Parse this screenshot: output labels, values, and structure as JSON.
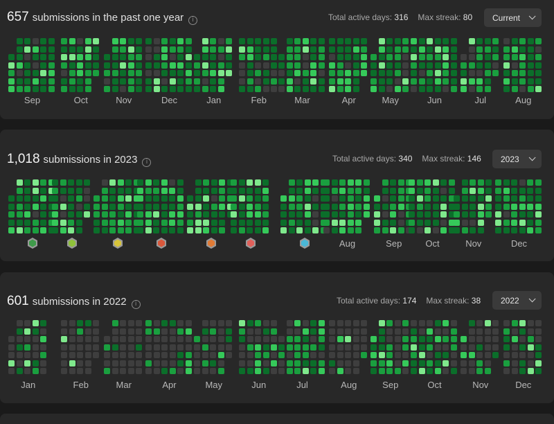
{
  "colors": {
    "level0": "#3e3e3e",
    "level1": "#0b6e2a",
    "level2": "#1a9f3f",
    "level3": "#36c95a",
    "level4": "#7fe88c"
  },
  "cards": [
    {
      "count": "657",
      "label": "submissions in the past one year",
      "active_days_label": "Total active days: ",
      "active_days": "316",
      "streak_label": "Max streak: ",
      "streak": "80",
      "select": "Current",
      "months": [
        "Sep",
        "Oct",
        "Nov",
        "Dec",
        "Jan",
        "Feb",
        "Mar",
        "Apr",
        "May",
        "Jun",
        "Jul",
        "Aug"
      ],
      "badges": []
    },
    {
      "count": "1,018",
      "label": "submissions in 2023",
      "active_days_label": "Total active days: ",
      "active_days": "340",
      "streak_label": "Max streak: ",
      "streak": "146",
      "select": "2023",
      "months": [
        "",
        "",
        "",
        "",
        "",
        "",
        "",
        "Aug",
        "Sep",
        "Oct",
        "Nov",
        "Dec"
      ],
      "badges": [
        {
          "name": "jan-badge-icon",
          "color": "#3f9a4a"
        },
        {
          "name": "feb-badge-icon",
          "color": "#8fc13a"
        },
        {
          "name": "mar-badge-icon",
          "color": "#d7c43a"
        },
        {
          "name": "apr-badge-icon",
          "color": "#d9573b"
        },
        {
          "name": "may-badge-icon",
          "color": "#e07a35"
        },
        {
          "name": "jun-badge-icon",
          "color": "#e0605a"
        },
        {
          "name": "jul-badge-icon",
          "color": "#4ab7d6"
        }
      ]
    },
    {
      "count": "601",
      "label": "submissions in 2022",
      "active_days_label": "Total active days: ",
      "active_days": "174",
      "streak_label": "Max streak: ",
      "streak": "38",
      "select": "2022",
      "months": [
        "Jan",
        "Feb",
        "Mar",
        "Apr",
        "May",
        "Jun",
        "Jul",
        "Aug",
        "Sep",
        "Oct",
        "Nov",
        "Dec"
      ],
      "badges": []
    }
  ]
}
